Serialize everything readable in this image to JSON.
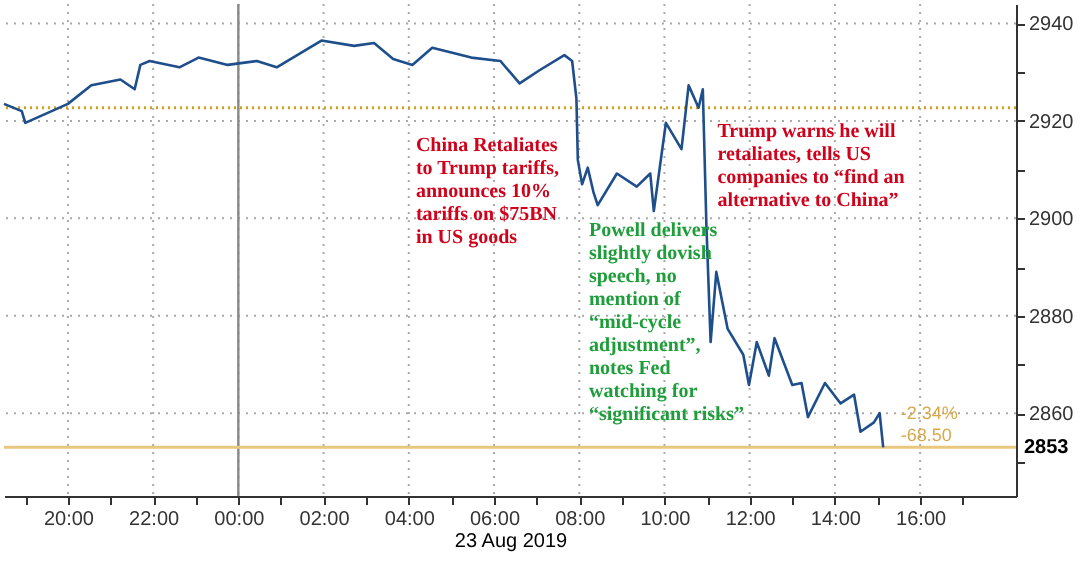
{
  "chart_data": {
    "type": "line",
    "xlabel": "23 Aug 2019",
    "x": [
      "2019-08-22T18:30",
      "2019-08-22T18:55",
      "2019-08-22T19:00",
      "2019-08-22T20:00",
      "2019-08-22T20:33",
      "2019-08-22T21:14",
      "2019-08-22T21:34",
      "2019-08-22T21:42",
      "2019-08-22T21:55",
      "2019-08-22T22:37",
      "2019-08-22T23:04",
      "2019-08-22T23:45",
      "2019-08-23T00:26",
      "2019-08-23T00:54",
      "2019-08-23T01:57",
      "2019-08-23T02:43",
      "2019-08-23T03:11",
      "2019-08-23T03:38",
      "2019-08-23T04:05",
      "2019-08-23T04:33",
      "2019-08-23T05:28",
      "2019-08-23T06:09",
      "2019-08-23T06:36",
      "2019-08-23T07:04",
      "2019-08-23T07:39",
      "2019-08-23T07:50",
      "2019-08-23T07:56",
      "2019-08-23T07:58",
      "2019-08-23T08:04",
      "2019-08-23T08:12",
      "2019-08-23T08:20",
      "2019-08-23T08:26",
      "2019-08-23T08:53",
      "2019-08-23T09:21",
      "2019-08-23T09:40",
      "2019-08-23T09:45",
      "2019-08-23T10:02",
      "2019-08-23T10:24",
      "2019-08-23T10:34",
      "2019-08-23T10:48",
      "2019-08-23T10:54",
      "2019-08-23T10:59",
      "2019-08-23T11:05",
      "2019-08-23T11:13",
      "2019-08-23T11:29",
      "2019-08-23T11:51",
      "2019-08-23T11:59",
      "2019-08-23T12:10",
      "2019-08-23T12:27",
      "2019-08-23T12:35",
      "2019-08-23T13:00",
      "2019-08-23T13:13",
      "2019-08-23T13:22",
      "2019-08-23T13:46",
      "2019-08-23T14:08",
      "2019-08-23T14:27",
      "2019-08-23T14:36",
      "2019-08-23T14:55",
      "2019-08-23T15:03",
      "2019-08-23T15:08"
    ],
    "series": [
      {
        "color": "#1f4e8c",
        "values": [
          2923.5,
          2922,
          2919.6,
          2923.5,
          2927.3,
          2928.5,
          2926.5,
          2931.5,
          2932.3,
          2931,
          2933,
          2931.5,
          2932.3,
          2931,
          2936.5,
          2935.4,
          2936,
          2932.7,
          2931.5,
          2935,
          2933,
          2932.3,
          2927.7,
          2930.4,
          2933.5,
          2932.3,
          2924.6,
          2912,
          2907,
          2910.4,
          2905.4,
          2902.7,
          2909.2,
          2906.5,
          2909.2,
          2901.5,
          2919.6,
          2914.2,
          2927.3,
          2922.7,
          2926.5,
          2898.8,
          2874.6,
          2889,
          2877.3,
          2872,
          2865.8,
          2874.6,
          2867.7,
          2875.4,
          2865.8,
          2866.2,
          2859.2,
          2866.2,
          2862,
          2863.8,
          2856.2,
          2858.1,
          2860,
          2853
        ]
      }
    ],
    "xlim": [
      "2019-08-22T18:30",
      "2019-08-23T18:15"
    ],
    "xticks": [
      {
        "value": "2019-08-22T19:00",
        "label": null
      },
      {
        "value": "2019-08-22T20:00",
        "label": "20:00"
      },
      {
        "value": "2019-08-22T21:00",
        "label": null
      },
      {
        "value": "2019-08-22T22:00",
        "label": "22:00"
      },
      {
        "value": "2019-08-22T23:00",
        "label": null
      },
      {
        "value": "2019-08-23T00:00",
        "label": "00:00"
      },
      {
        "value": "2019-08-23T01:00",
        "label": null
      },
      {
        "value": "2019-08-23T02:00",
        "label": "02:00"
      },
      {
        "value": "2019-08-23T03:00",
        "label": null
      },
      {
        "value": "2019-08-23T04:00",
        "label": "04:00"
      },
      {
        "value": "2019-08-23T05:00",
        "label": null
      },
      {
        "value": "2019-08-23T06:00",
        "label": "06:00"
      },
      {
        "value": "2019-08-23T07:00",
        "label": null
      },
      {
        "value": "2019-08-23T08:00",
        "label": "08:00"
      },
      {
        "value": "2019-08-23T09:00",
        "label": null
      },
      {
        "value": "2019-08-23T10:00",
        "label": "10:00"
      },
      {
        "value": "2019-08-23T11:00",
        "label": null
      },
      {
        "value": "2019-08-23T12:00",
        "label": "12:00"
      },
      {
        "value": "2019-08-23T13:00",
        "label": null
      },
      {
        "value": "2019-08-23T14:00",
        "label": "14:00"
      },
      {
        "value": "2019-08-23T15:00",
        "label": null
      },
      {
        "value": "2019-08-23T16:00",
        "label": "16:00"
      },
      {
        "value": "2019-08-23T17:00",
        "label": null
      }
    ],
    "ylim": [
      2843,
      2944
    ],
    "yticks": [
      {
        "value": 2850,
        "label": null
      },
      2860,
      {
        "value": 2870,
        "label": null
      },
      2880,
      {
        "value": 2890,
        "label": null
      },
      2900,
      {
        "value": 2910,
        "label": null
      },
      2920,
      {
        "value": 2930,
        "label": null
      },
      2940
    ],
    "grid": true,
    "marker": "none",
    "line_style": "solid",
    "ref_lines": [
      {
        "axis": "y",
        "value": 2922.7,
        "color": "#d4a017",
        "line_style": "dotted"
      },
      {
        "axis": "x",
        "value": "2019-08-23T00:00",
        "color": "#888888",
        "line_style": "solid"
      },
      {
        "axis": "y",
        "value": 2853,
        "label": "2853",
        "color": "#e8c77e",
        "line_style": "solid"
      }
    ],
    "annotations": [
      "China Retaliates\nto Trump tariffs,\nannounces 10%\ntariffs on $75BN\nin US goods",
      "Trump warns he will\nretaliates, tells US\ncompanies to “find an\nalternative to China”",
      "Powell delivers\nslightly dovish\nspeech, no\nmention of\n“mid-cycle\nadjustment”,\nnotes Fed\nwatching for\n“significant risks”",
      "-2.34%",
      "-68.50"
    ]
  }
}
